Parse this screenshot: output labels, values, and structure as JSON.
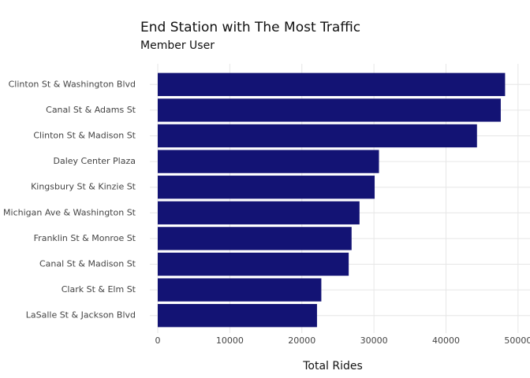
{
  "chart_data": {
    "type": "bar",
    "orientation": "horizontal",
    "title": "End Station with The Most Traffic",
    "subtitle": "Member User",
    "x_label": "Total Rides",
    "categories": [
      "Clinton St & Washington Blvd",
      "Canal St & Adams St",
      "Clinton St & Madison St",
      "Daley Center Plaza",
      "Kingsbury St & Kinzie St",
      "Michigan Ave & Washington St",
      "Franklin St & Monroe St",
      "Canal St & Madison St",
      "Clark St & Elm St",
      "LaSalle St & Jackson Blvd"
    ],
    "values": [
      48200,
      47600,
      44300,
      30700,
      30100,
      28000,
      26900,
      26500,
      22700,
      22100
    ],
    "color": "#131374",
    "xlim": [
      0,
      51000
    ],
    "xticks": [
      0,
      10000,
      20000,
      30000,
      40000,
      50000
    ],
    "grid": true
  }
}
